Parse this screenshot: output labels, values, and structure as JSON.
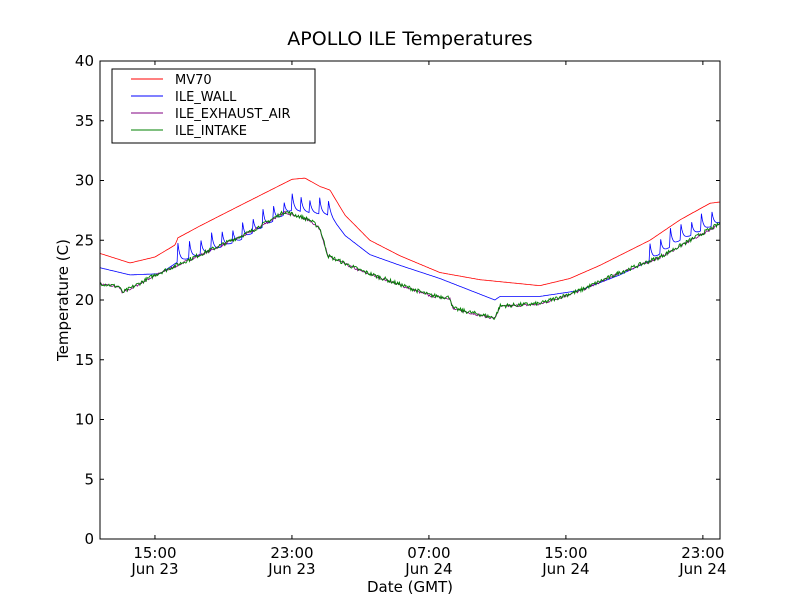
{
  "chart_data": {
    "type": "line",
    "title": "APOLLO ILE Temperatures",
    "xlabel": "Date (GMT)",
    "ylabel": "Temperature (C)",
    "x_units": "hours since Jun 23 00:00 GMT",
    "xlim": [
      11.79,
      48.0
    ],
    "ylim": [
      0,
      40
    ],
    "yticks": [
      0,
      5,
      10,
      15,
      20,
      25,
      30,
      35,
      40
    ],
    "xticks": [
      {
        "value": 15,
        "time": "15:00",
        "date": "Jun 23"
      },
      {
        "value": 23,
        "time": "23:00",
        "date": "Jun 23"
      },
      {
        "value": 31,
        "time": "07:00",
        "date": "Jun 24"
      },
      {
        "value": 39,
        "time": "15:00",
        "date": "Jun 24"
      },
      {
        "value": 47,
        "time": "23:00",
        "date": "Jun 24"
      }
    ],
    "grid": false,
    "legend_position": "top-left",
    "series": [
      {
        "name": "MV70",
        "color": "#ff0000",
        "x": [
          11.79,
          13.54,
          15,
          16.17,
          16.34,
          17.63,
          19.96,
          23,
          23.76,
          24.64,
          25.22,
          26.1,
          27.55,
          29.31,
          31.64,
          33.98,
          37.48,
          39.23,
          40.99,
          43.91,
          45.66,
          47.42,
          48
        ],
        "y": [
          23.9,
          23.1,
          23.6,
          24.6,
          25.2,
          26.2,
          27.9,
          30.1,
          30.2,
          29.5,
          29.2,
          27.1,
          25.0,
          23.7,
          22.3,
          21.7,
          21.2,
          21.8,
          22.9,
          25.0,
          26.7,
          28.1,
          28.2
        ]
      },
      {
        "name": "ILE_WALL",
        "color": "#0000ff",
        "x": [
          11.79,
          13.54,
          15.29,
          16.34,
          17.63,
          19.96,
          23,
          25.22,
          26.1,
          27.55,
          29.31,
          31.64,
          34.85,
          35.15,
          37.48,
          39.82,
          42.15,
          43.91,
          45.66,
          48
        ],
        "y": [
          22.7,
          22.1,
          22.2,
          23.2,
          23.8,
          25.0,
          27.5,
          27.1,
          25.4,
          23.8,
          22.9,
          21.8,
          20.0,
          20.3,
          20.3,
          20.8,
          22.1,
          23.3,
          25.0,
          26.5
        ],
        "spikes_x": [
          16.34,
          17.0,
          17.65,
          18.3,
          18.9,
          19.5,
          20.1,
          20.7,
          21.3,
          21.9,
          22.5,
          23.0,
          23.5,
          24.0,
          24.6,
          25.1,
          43.9,
          44.5,
          45.1,
          45.7,
          46.3,
          46.9,
          47.5
        ],
        "spike_height": 1.6
      },
      {
        "name": "ILE_EXHAUST_AIR",
        "color": "#800080",
        "x": [
          11.79,
          12.96,
          13.07,
          15,
          17.63,
          20.55,
          22.59,
          24.05,
          24.64,
          25.1,
          26.97,
          29.31,
          31.06,
          32.23,
          32.4,
          34.85,
          35.15,
          37.48,
          39.82,
          42.15,
          44.49,
          48
        ],
        "y": [
          21.4,
          21.1,
          20.6,
          22.1,
          23.8,
          25.7,
          27.4,
          26.7,
          26.0,
          23.7,
          22.5,
          21.3,
          20.4,
          20.2,
          19.3,
          18.5,
          19.5,
          19.7,
          20.8,
          22.3,
          23.6,
          26.4
        ]
      },
      {
        "name": "ILE_INTAKE",
        "color": "#008000",
        "x": [
          11.79,
          12.96,
          13.07,
          15,
          17.63,
          20.55,
          22.59,
          24.05,
          24.64,
          25.1,
          26.97,
          29.31,
          31.06,
          32.23,
          32.4,
          34.85,
          35.15,
          37.48,
          39.82,
          42.15,
          44.49,
          48
        ],
        "y": [
          21.4,
          21.1,
          20.6,
          22.1,
          23.8,
          25.7,
          27.4,
          26.7,
          26.0,
          23.7,
          22.5,
          21.3,
          20.4,
          20.2,
          19.3,
          18.5,
          19.5,
          19.7,
          20.8,
          22.3,
          23.6,
          26.4
        ]
      }
    ]
  }
}
